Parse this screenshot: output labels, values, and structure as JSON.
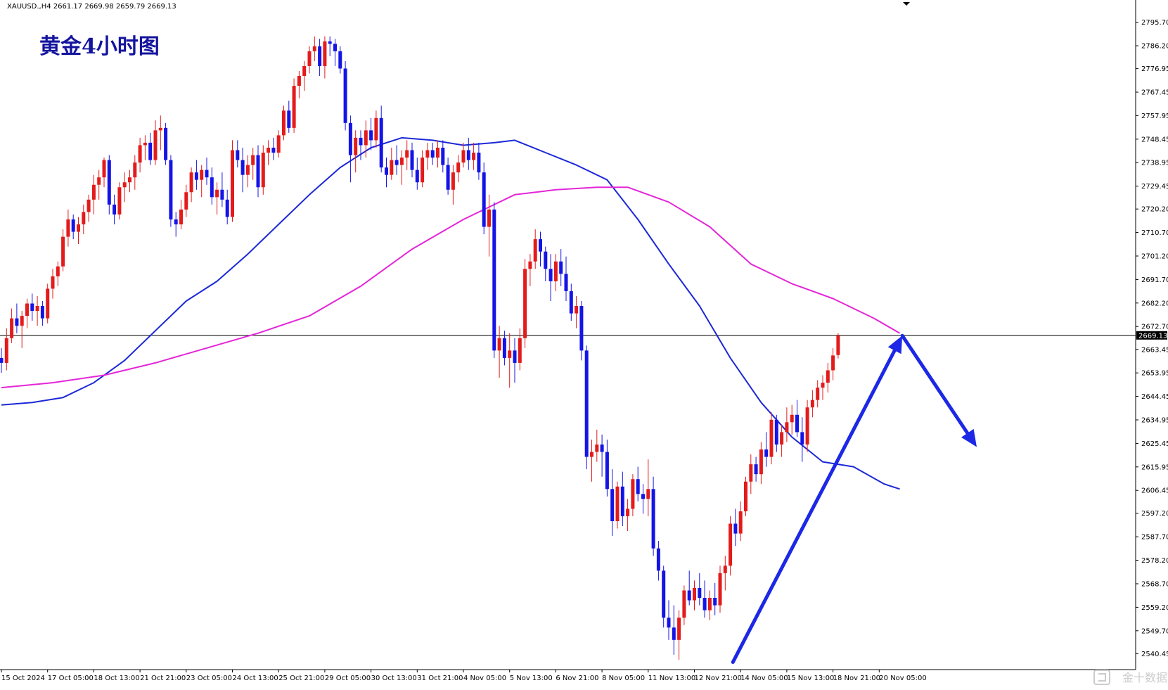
{
  "header": {
    "symbol_line": "XAUUSD.,H4  2661.17 2669.98 2659.79 2669.13",
    "chart_title": "黄金4小时图",
    "watermark": "金十数据"
  },
  "colors": {
    "up": "#e31b1b",
    "down": "#1414e6",
    "ma_fast": "#1c28d6",
    "ma_slow": "#e426d8",
    "price_line": "#000000",
    "arrow": "#1c28e6",
    "title": "#14149e"
  },
  "chart_data": {
    "type": "candlestick",
    "symbol": "XAUUSD.",
    "timeframe": "H4",
    "ohlc_header": {
      "open": 2661.17,
      "high": 2669.98,
      "low": 2659.79,
      "close": 2669.13
    },
    "current_price": 2669.13,
    "current_price_label": "2669.13",
    "ylim": [
      2534,
      2803
    ],
    "y_ticks": [
      2540.45,
      2549.7,
      2559.2,
      2568.7,
      2578.2,
      2587.7,
      2597.2,
      2606.45,
      2615.95,
      2625.45,
      2634.95,
      2644.45,
      2653.95,
      2663.45,
      2672.7,
      2682.2,
      2691.7,
      2701.2,
      2710.7,
      2720.2,
      2729.45,
      2738.95,
      2748.45,
      2757.95,
      2767.45,
      2776.95,
      2786.2,
      2795.7
    ],
    "y_tick_labels": [
      "2540.45",
      "2549.70",
      "2559.20",
      "2568.70",
      "2578.20",
      "2587.70",
      "2597.20",
      "2606.45",
      "2615.95",
      "2625.45",
      "2634.95",
      "2644.45",
      "2653.95",
      "2663.45",
      "2672.70",
      "2682.20",
      "2691.70",
      "2701.20",
      "2710.70",
      "2720.20",
      "2729.45",
      "2738.95",
      "2748.45",
      "2757.95",
      "2767.45",
      "2776.95",
      "2786.20",
      "2795.70"
    ],
    "x_ticks": [
      {
        "label": "15 Oct 2024",
        "bar": 0
      },
      {
        "label": "17 Oct 05:00",
        "bar": 9
      },
      {
        "label": "18 Oct 13:00",
        "bar": 18
      },
      {
        "label": "21 Oct 21:00",
        "bar": 27
      },
      {
        "label": "23 Oct 05:00",
        "bar": 36
      },
      {
        "label": "24 Oct 13:00",
        "bar": 45
      },
      {
        "label": "25 Oct 21:00",
        "bar": 54
      },
      {
        "label": "29 Oct 05:00",
        "bar": 63
      },
      {
        "label": "30 Oct 13:00",
        "bar": 72
      },
      {
        "label": "31 Oct 21:00",
        "bar": 81
      },
      {
        "label": "4 Nov 05:00",
        "bar": 90
      },
      {
        "label": "5 Nov 13:00",
        "bar": 99
      },
      {
        "label": "6 Nov 21:00",
        "bar": 108
      },
      {
        "label": "8 Nov 05:00",
        "bar": 117
      },
      {
        "label": "11 Nov 13:00",
        "bar": 126
      },
      {
        "label": "12 Nov 21:00",
        "bar": 135
      },
      {
        "label": "14 Nov 05:00",
        "bar": 144
      },
      {
        "label": "15 Nov 13:00",
        "bar": 153
      },
      {
        "label": "18 Nov 21:00",
        "bar": 162
      },
      {
        "label": "20 Nov 05:00",
        "bar": 171
      }
    ],
    "candles": [
      [
        2660,
        2664,
        2654,
        2658
      ],
      [
        2658,
        2672,
        2655,
        2668
      ],
      [
        2668,
        2680,
        2666,
        2676
      ],
      [
        2676,
        2682,
        2670,
        2673
      ],
      [
        2673,
        2679,
        2664,
        2677
      ],
      [
        2677,
        2684,
        2672,
        2682
      ],
      [
        2682,
        2686,
        2675,
        2679
      ],
      [
        2679,
        2685,
        2673,
        2681
      ],
      [
        2681,
        2683,
        2673,
        2676
      ],
      [
        2676,
        2690,
        2674,
        2688
      ],
      [
        2688,
        2696,
        2684,
        2693
      ],
      [
        2693,
        2699,
        2689,
        2697
      ],
      [
        2697,
        2712,
        2695,
        2709
      ],
      [
        2709,
        2720,
        2705,
        2716
      ],
      [
        2716,
        2718,
        2708,
        2711
      ],
      [
        2711,
        2717,
        2706,
        2714
      ],
      [
        2714,
        2722,
        2710,
        2719
      ],
      [
        2719,
        2726,
        2715,
        2724
      ],
      [
        2724,
        2734,
        2718,
        2730
      ],
      [
        2730,
        2736,
        2724,
        2733
      ],
      [
        2733,
        2741,
        2729,
        2740
      ],
      [
        2740,
        2742,
        2718,
        2722
      ],
      [
        2722,
        2726,
        2714,
        2718
      ],
      [
        2718,
        2731,
        2716,
        2729
      ],
      [
        2729,
        2735,
        2723,
        2731
      ],
      [
        2731,
        2736,
        2727,
        2733
      ],
      [
        2733,
        2742,
        2728,
        2739
      ],
      [
        2739,
        2749,
        2735,
        2746
      ],
      [
        2746,
        2750,
        2740,
        2747
      ],
      [
        2747,
        2751,
        2738,
        2740
      ],
      [
        2740,
        2756,
        2738,
        2752
      ],
      [
        2752,
        2758,
        2744,
        2753
      ],
      [
        2753,
        2755,
        2738,
        2740
      ],
      [
        2740,
        2742,
        2713,
        2716
      ],
      [
        2716,
        2719,
        2709,
        2714
      ],
      [
        2714,
        2724,
        2712,
        2720
      ],
      [
        2720,
        2730,
        2717,
        2727
      ],
      [
        2727,
        2737,
        2723,
        2735
      ],
      [
        2735,
        2740,
        2728,
        2732
      ],
      [
        2732,
        2738,
        2725,
        2736
      ],
      [
        2736,
        2741,
        2730,
        2733
      ],
      [
        2733,
        2737,
        2722,
        2725
      ],
      [
        2725,
        2731,
        2718,
        2728
      ],
      [
        2728,
        2735,
        2721,
        2724
      ],
      [
        2724,
        2728,
        2714,
        2717
      ],
      [
        2717,
        2748,
        2715,
        2744
      ],
      [
        2744,
        2748,
        2737,
        2740
      ],
      [
        2740,
        2745,
        2727,
        2734
      ],
      [
        2734,
        2742,
        2729,
        2738
      ],
      [
        2738,
        2745,
        2732,
        2742
      ],
      [
        2742,
        2746,
        2725,
        2729
      ],
      [
        2729,
        2746,
        2726,
        2743
      ],
      [
        2743,
        2748,
        2738,
        2745
      ],
      [
        2745,
        2749,
        2740,
        2743
      ],
      [
        2743,
        2752,
        2741,
        2750
      ],
      [
        2750,
        2762,
        2748,
        2760
      ],
      [
        2760,
        2764,
        2751,
        2753
      ],
      [
        2753,
        2773,
        2751,
        2770
      ],
      [
        2770,
        2776,
        2765,
        2774
      ],
      [
        2774,
        2780,
        2768,
        2778
      ],
      [
        2778,
        2786,
        2775,
        2784
      ],
      [
        2784,
        2790,
        2780,
        2786
      ],
      [
        2786,
        2789,
        2774,
        2778
      ],
      [
        2778,
        2790,
        2773,
        2788
      ],
      [
        2788,
        2790,
        2782,
        2787
      ],
      [
        2787,
        2789,
        2778,
        2784
      ],
      [
        2784,
        2786,
        2775,
        2777
      ],
      [
        2777,
        2780,
        2752,
        2755
      ],
      [
        2755,
        2758,
        2731,
        2742
      ],
      [
        2742,
        2752,
        2735,
        2749
      ],
      [
        2749,
        2752,
        2740,
        2746
      ],
      [
        2746,
        2756,
        2741,
        2752
      ],
      [
        2752,
        2757,
        2744,
        2748
      ],
      [
        2748,
        2760,
        2745,
        2757
      ],
      [
        2757,
        2762,
        2735,
        2737
      ],
      [
        2737,
        2741,
        2729,
        2734
      ],
      [
        2734,
        2745,
        2732,
        2740
      ],
      [
        2740,
        2746,
        2734,
        2738
      ],
      [
        2738,
        2744,
        2730,
        2741
      ],
      [
        2741,
        2748,
        2736,
        2744
      ],
      [
        2744,
        2747,
        2733,
        2736
      ],
      [
        2736,
        2741,
        2728,
        2731
      ],
      [
        2731,
        2744,
        2729,
        2741
      ],
      [
        2741,
        2747,
        2736,
        2744
      ],
      [
        2744,
        2747,
        2738,
        2741
      ],
      [
        2741,
        2748,
        2737,
        2745
      ],
      [
        2745,
        2748,
        2735,
        2738
      ],
      [
        2738,
        2741,
        2726,
        2728
      ],
      [
        2728,
        2738,
        2722,
        2735
      ],
      [
        2735,
        2742,
        2731,
        2739
      ],
      [
        2739,
        2747,
        2737,
        2744
      ],
      [
        2744,
        2749,
        2736,
        2740
      ],
      [
        2740,
        2747,
        2736,
        2743
      ],
      [
        2743,
        2747,
        2732,
        2735
      ],
      [
        2735,
        2739,
        2710,
        2713
      ],
      [
        2713,
        2726,
        2701,
        2720
      ],
      [
        2720,
        2723,
        2660,
        2663
      ],
      [
        2663,
        2673,
        2652,
        2668
      ],
      [
        2668,
        2671,
        2657,
        2660
      ],
      [
        2660,
        2670,
        2648,
        2663
      ],
      [
        2663,
        2668,
        2650,
        2658
      ],
      [
        2658,
        2672,
        2655,
        2668
      ],
      [
        2668,
        2700,
        2664,
        2696
      ],
      [
        2696,
        2702,
        2689,
        2699
      ],
      [
        2699,
        2712,
        2696,
        2708
      ],
      [
        2708,
        2711,
        2697,
        2703
      ],
      [
        2703,
        2705,
        2691,
        2696
      ],
      [
        2696,
        2702,
        2683,
        2691
      ],
      [
        2691,
        2702,
        2687,
        2699
      ],
      [
        2699,
        2704,
        2689,
        2694
      ],
      [
        2694,
        2701,
        2683,
        2687
      ],
      [
        2687,
        2690,
        2675,
        2678
      ],
      [
        2678,
        2685,
        2672,
        2681
      ],
      [
        2681,
        2683,
        2659,
        2663
      ],
      [
        2663,
        2665,
        2615,
        2620
      ],
      [
        2620,
        2627,
        2610,
        2622
      ],
      [
        2622,
        2631,
        2618,
        2625
      ],
      [
        2625,
        2629,
        2612,
        2622
      ],
      [
        2622,
        2627,
        2604,
        2607
      ],
      [
        2607,
        2615,
        2588,
        2594
      ],
      [
        2594,
        2610,
        2591,
        2608
      ],
      [
        2608,
        2614,
        2592,
        2596
      ],
      [
        2596,
        2603,
        2590,
        2599
      ],
      [
        2599,
        2613,
        2596,
        2611
      ],
      [
        2611,
        2616,
        2602,
        2605
      ],
      [
        2605,
        2609,
        2597,
        2603
      ],
      [
        2603,
        2619,
        2596,
        2607
      ],
      [
        2607,
        2612,
        2580,
        2583
      ],
      [
        2583,
        2586,
        2570,
        2574
      ],
      [
        2574,
        2576,
        2551,
        2555
      ],
      [
        2555,
        2562,
        2546,
        2551
      ],
      [
        2551,
        2560,
        2540,
        2546
      ],
      [
        2546,
        2558,
        2538,
        2555
      ],
      [
        2555,
        2568,
        2552,
        2566
      ],
      [
        2566,
        2574,
        2560,
        2562
      ],
      [
        2562,
        2570,
        2558,
        2567
      ],
      [
        2567,
        2573,
        2560,
        2563
      ],
      [
        2563,
        2570,
        2555,
        2558
      ],
      [
        2558,
        2566,
        2554,
        2563
      ],
      [
        2563,
        2569,
        2556,
        2560
      ],
      [
        2560,
        2576,
        2557,
        2573
      ],
      [
        2573,
        2580,
        2566,
        2576
      ],
      [
        2576,
        2596,
        2572,
        2593
      ],
      [
        2593,
        2599,
        2584,
        2589
      ],
      [
        2589,
        2602,
        2586,
        2598
      ],
      [
        2598,
        2612,
        2596,
        2610
      ],
      [
        2610,
        2621,
        2605,
        2617
      ],
      [
        2617,
        2620,
        2610,
        2613
      ],
      [
        2613,
        2626,
        2609,
        2623
      ],
      [
        2623,
        2630,
        2616,
        2620
      ],
      [
        2620,
        2638,
        2617,
        2635
      ],
      [
        2635,
        2637,
        2622,
        2625
      ],
      [
        2625,
        2633,
        2620,
        2630
      ],
      [
        2630,
        2640,
        2626,
        2634
      ],
      [
        2634,
        2641,
        2629,
        2637
      ],
      [
        2637,
        2643,
        2628,
        2630
      ],
      [
        2630,
        2636,
        2618,
        2625
      ],
      [
        2625,
        2643,
        2622,
        2640
      ],
      [
        2640,
        2647,
        2636,
        2643
      ],
      [
        2643,
        2651,
        2640,
        2648
      ],
      [
        2648,
        2653,
        2643,
        2650
      ],
      [
        2650,
        2658,
        2646,
        2655
      ],
      [
        2655,
        2664,
        2651,
        2661
      ],
      [
        2661.17,
        2669.98,
        2659.79,
        2669.13
      ]
    ],
    "series": [
      {
        "period": "fast",
        "color": "#1c28d6",
        "points": [
          [
            0,
            2641
          ],
          [
            6,
            2642
          ],
          [
            12,
            2644
          ],
          [
            18,
            2650
          ],
          [
            24,
            2659
          ],
          [
            30,
            2671
          ],
          [
            36,
            2683
          ],
          [
            42,
            2691
          ],
          [
            48,
            2702
          ],
          [
            54,
            2714
          ],
          [
            60,
            2726
          ],
          [
            66,
            2737
          ],
          [
            72,
            2745
          ],
          [
            78,
            2749
          ],
          [
            84,
            2748
          ],
          [
            90,
            2746
          ],
          [
            96,
            2747
          ],
          [
            100,
            2748
          ],
          [
            106,
            2743
          ],
          [
            112,
            2738
          ],
          [
            118,
            2732
          ],
          [
            124,
            2716
          ],
          [
            130,
            2698
          ],
          [
            136,
            2681
          ],
          [
            142,
            2660
          ],
          [
            148,
            2642
          ],
          [
            154,
            2628
          ],
          [
            160,
            2618
          ],
          [
            166,
            2616
          ],
          [
            172,
            2609
          ],
          [
            175,
            2607
          ]
        ]
      },
      {
        "period": "slow",
        "color": "#e426d8",
        "points": [
          [
            0,
            2648
          ],
          [
            10,
            2650
          ],
          [
            20,
            2653
          ],
          [
            30,
            2658
          ],
          [
            40,
            2664
          ],
          [
            50,
            2670
          ],
          [
            60,
            2677
          ],
          [
            70,
            2689
          ],
          [
            80,
            2704
          ],
          [
            90,
            2716
          ],
          [
            100,
            2726
          ],
          [
            108,
            2728
          ],
          [
            116,
            2729
          ],
          [
            122,
            2729
          ],
          [
            130,
            2723
          ],
          [
            138,
            2713
          ],
          [
            146,
            2698
          ],
          [
            154,
            2690
          ],
          [
            162,
            2684
          ],
          [
            170,
            2676
          ],
          [
            175,
            2670
          ]
        ]
      }
    ],
    "annotations": {
      "up_arrow": {
        "from": [
          142.5,
          2537
        ],
        "to": [
          175.5,
          2669
        ]
      },
      "down_arrow": {
        "from": [
          175.5,
          2669
        ],
        "to": [
          190,
          2624
        ]
      }
    }
  }
}
